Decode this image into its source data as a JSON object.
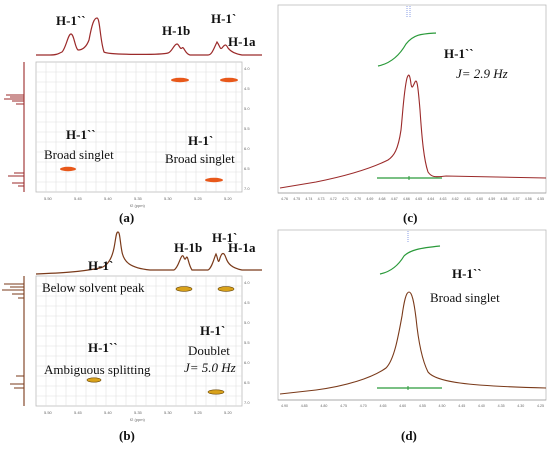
{
  "figure": {
    "panel_a": {
      "caption": "(a)",
      "peak_labels": [
        "H-1``",
        "H-1b",
        "H-1`",
        "H-1a"
      ],
      "annotations": [
        {
          "title": "H-1``",
          "text": "Broad singlet"
        },
        {
          "title": "H-1`",
          "text": "Broad singlet"
        }
      ],
      "x_ticks": [
        "5.50",
        "5.45",
        "5.40",
        "5.35",
        "5.30",
        "5.25",
        "5.20"
      ],
      "x_unit": "f2 (ppm)"
    },
    "panel_b": {
      "caption": "(b)",
      "peak_labels": [
        "H-1`",
        "H-1b",
        "H-1`",
        "H-1a"
      ],
      "annotations": [
        {
          "title": "",
          "text": "Below solvent peak"
        },
        {
          "title": "H-1``",
          "text": "Ambiguous splitting"
        },
        {
          "title": "H-1`",
          "text": "Doublet"
        },
        {
          "title": "",
          "text": "J= 5.0 Hz"
        }
      ],
      "x_ticks": [
        "5.50",
        "5.45",
        "5.40",
        "5.35",
        "5.30",
        "5.25",
        "5.20"
      ],
      "x_unit": "f2 (ppm)"
    },
    "panel_c": {
      "caption": "(c)",
      "peak_label": "H-1``",
      "coupling": "J= 2.9 Hz",
      "x_ticks": [
        "4.76",
        "4.75",
        "4.74",
        "4.73",
        "4.72",
        "4.71",
        "4.70",
        "4.69",
        "4.68",
        "4.67",
        "4.66",
        "4.65",
        "4.64",
        "4.63",
        "4.62",
        "4.61",
        "4.60",
        "4.59",
        "4.58",
        "4.57",
        "4.56",
        "4.55"
      ]
    },
    "panel_d": {
      "caption": "(d)",
      "peak_label": "H-1``",
      "text": "Broad singlet",
      "x_ticks": [
        "4.90",
        "4.85",
        "4.80",
        "4.75",
        "4.70",
        "4.65",
        "4.60",
        "4.55",
        "4.50",
        "4.45",
        "4.40",
        "4.35",
        "4.30",
        "4.25"
      ]
    }
  },
  "colors": {
    "spectrum": "#9b2a2a",
    "integral": "#2a9a3a",
    "cross_peak": "#e8581a",
    "cross_peak_b": "#d9a21a",
    "grid": "#d8d8d8"
  }
}
